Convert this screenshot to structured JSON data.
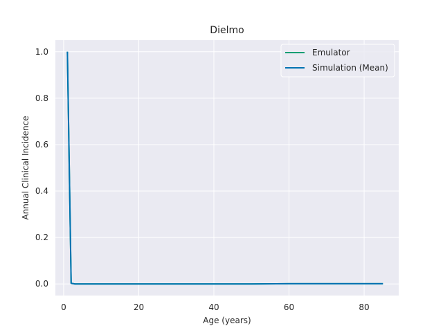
{
  "chart_data": {
    "type": "line",
    "title": "Dielmo",
    "xlabel": "Age (years)",
    "ylabel": "Annual Clinical Incidence",
    "xlim": [
      -2.2,
      89.2
    ],
    "ylim": [
      -0.05,
      1.05
    ],
    "xticks": [
      0,
      20,
      40,
      60,
      80
    ],
    "yticks": [
      0.0,
      0.2,
      0.4,
      0.6,
      0.8,
      1.0
    ],
    "xtick_labels": [
      "0",
      "20",
      "40",
      "60",
      "80"
    ],
    "ytick_labels": [
      "0.0",
      "0.2",
      "0.4",
      "0.6",
      "0.8",
      "1.0"
    ],
    "grid": true,
    "legend_position": "top-right",
    "series": [
      {
        "name": "Emulator",
        "color": "#009e73",
        "x": [
          1,
          2,
          3,
          5,
          10,
          20,
          30,
          40,
          50,
          60,
          70,
          85
        ],
        "y": [
          1.0,
          0.003,
          0.0,
          0.0,
          0.0,
          0.0,
          0.0,
          0.0,
          0.0,
          0.001,
          0.001,
          0.001
        ]
      },
      {
        "name": "Simulation (Mean)",
        "color": "#0072b2",
        "x": [
          1,
          2,
          3,
          5,
          10,
          20,
          30,
          40,
          50,
          60,
          70,
          85
        ],
        "y": [
          1.0,
          0.003,
          0.0,
          0.0,
          0.0,
          0.0,
          0.0,
          0.0,
          0.0,
          0.001,
          0.001,
          0.001
        ]
      }
    ]
  }
}
